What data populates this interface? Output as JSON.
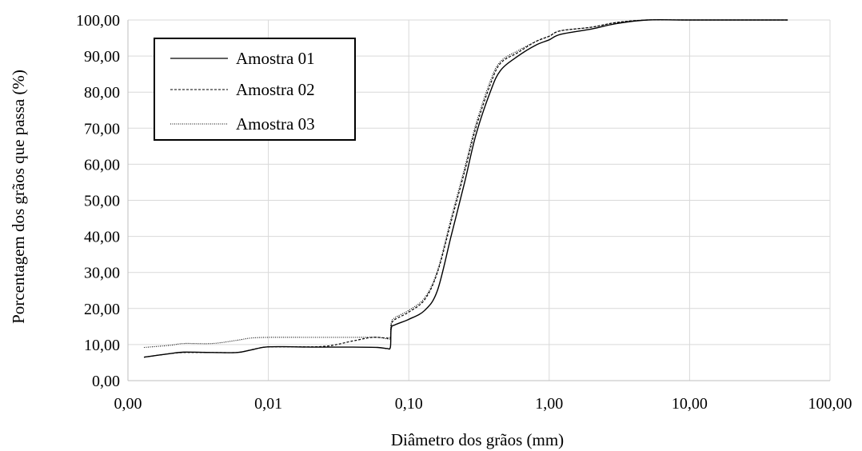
{
  "chart_data": {
    "type": "line",
    "title": "",
    "xlabel": "Diâmetro dos grãos (mm)",
    "ylabel": "Porcentagem dos grãos que passa  (%)",
    "x_scale": "log",
    "xlim": [
      0.001,
      100
    ],
    "ylim": [
      0,
      100
    ],
    "x_ticks": [
      0.001,
      0.01,
      0.1,
      1,
      10,
      100
    ],
    "x_tick_labels": [
      "0,00",
      "0,01",
      "0,10",
      "1,00",
      "10,00",
      "100,00"
    ],
    "y_ticks": [
      0,
      10,
      20,
      30,
      40,
      50,
      60,
      70,
      80,
      90,
      100
    ],
    "y_tick_labels": [
      "0,00",
      "10,00",
      "20,00",
      "30,00",
      "40,00",
      "50,00",
      "60,00",
      "70,00",
      "80,00",
      "90,00",
      "100,00"
    ],
    "grid": true,
    "legend_position": "top-left",
    "series": [
      {
        "name": "Amostra 01",
        "style": "solid",
        "points": [
          [
            0.0013,
            6.5
          ],
          [
            0.002,
            7.5
          ],
          [
            0.0025,
            7.9
          ],
          [
            0.004,
            7.8
          ],
          [
            0.006,
            7.8
          ],
          [
            0.0075,
            8.5
          ],
          [
            0.0095,
            9.3
          ],
          [
            0.013,
            9.4
          ],
          [
            0.02,
            9.3
          ],
          [
            0.04,
            9.3
          ],
          [
            0.06,
            9.2
          ],
          [
            0.07,
            8.9
          ],
          [
            0.074,
            9.3
          ],
          [
            0.075,
            14.5
          ],
          [
            0.08,
            15.5
          ],
          [
            0.1,
            17.0
          ],
          [
            0.13,
            19.5
          ],
          [
            0.16,
            25.0
          ],
          [
            0.2,
            40.0
          ],
          [
            0.25,
            55.0
          ],
          [
            0.3,
            68.0
          ],
          [
            0.38,
            80.0
          ],
          [
            0.45,
            86.0
          ],
          [
            0.6,
            90.0
          ],
          [
            0.8,
            93.0
          ],
          [
            1.0,
            94.5
          ],
          [
            1.2,
            96.0
          ],
          [
            2.0,
            97.5
          ],
          [
            3.0,
            99.0
          ],
          [
            5.0,
            100
          ],
          [
            10.0,
            100
          ],
          [
            50.0,
            100
          ]
        ]
      },
      {
        "name": "Amostra 02",
        "style": "dashed",
        "points": [
          [
            0.0013,
            6.5
          ],
          [
            0.002,
            7.5
          ],
          [
            0.0025,
            7.8
          ],
          [
            0.004,
            7.8
          ],
          [
            0.006,
            7.8
          ],
          [
            0.0075,
            8.5
          ],
          [
            0.0095,
            9.3
          ],
          [
            0.013,
            9.4
          ],
          [
            0.025,
            9.5
          ],
          [
            0.04,
            11.0
          ],
          [
            0.055,
            12.0
          ],
          [
            0.07,
            11.8
          ],
          [
            0.074,
            12.0
          ],
          [
            0.075,
            15.5
          ],
          [
            0.08,
            17.0
          ],
          [
            0.1,
            19.0
          ],
          [
            0.13,
            22.5
          ],
          [
            0.16,
            30.0
          ],
          [
            0.2,
            44.0
          ],
          [
            0.25,
            58.0
          ],
          [
            0.3,
            70.0
          ],
          [
            0.38,
            82.0
          ],
          [
            0.45,
            88.0
          ],
          [
            0.6,
            91.0
          ],
          [
            0.8,
            94.0
          ],
          [
            1.0,
            95.5
          ],
          [
            1.2,
            97.0
          ],
          [
            2.0,
            98.0
          ],
          [
            3.0,
            99.3
          ],
          [
            5.0,
            100
          ],
          [
            10.0,
            100
          ],
          [
            50.0,
            100
          ]
        ]
      },
      {
        "name": "Amostra 03",
        "style": "dotted",
        "points": [
          [
            0.0013,
            9.2
          ],
          [
            0.002,
            9.8
          ],
          [
            0.0025,
            10.3
          ],
          [
            0.004,
            10.3
          ],
          [
            0.006,
            11.2
          ],
          [
            0.0075,
            11.8
          ],
          [
            0.01,
            12.0
          ],
          [
            0.02,
            12.0
          ],
          [
            0.04,
            12.0
          ],
          [
            0.06,
            12.0
          ],
          [
            0.07,
            11.6
          ],
          [
            0.074,
            12.0
          ],
          [
            0.075,
            16.0
          ],
          [
            0.08,
            17.5
          ],
          [
            0.1,
            19.5
          ],
          [
            0.13,
            23.0
          ],
          [
            0.16,
            30.5
          ],
          [
            0.2,
            45.0
          ],
          [
            0.25,
            59.0
          ],
          [
            0.3,
            71.0
          ],
          [
            0.38,
            83.0
          ],
          [
            0.45,
            88.5
          ],
          [
            0.6,
            91.5
          ],
          [
            0.8,
            94.0
          ],
          [
            1.0,
            95.5
          ],
          [
            1.2,
            97.0
          ],
          [
            2.0,
            98.0
          ],
          [
            3.0,
            99.3
          ],
          [
            5.0,
            100
          ],
          [
            10.0,
            100
          ],
          [
            50.0,
            100
          ]
        ]
      }
    ]
  }
}
